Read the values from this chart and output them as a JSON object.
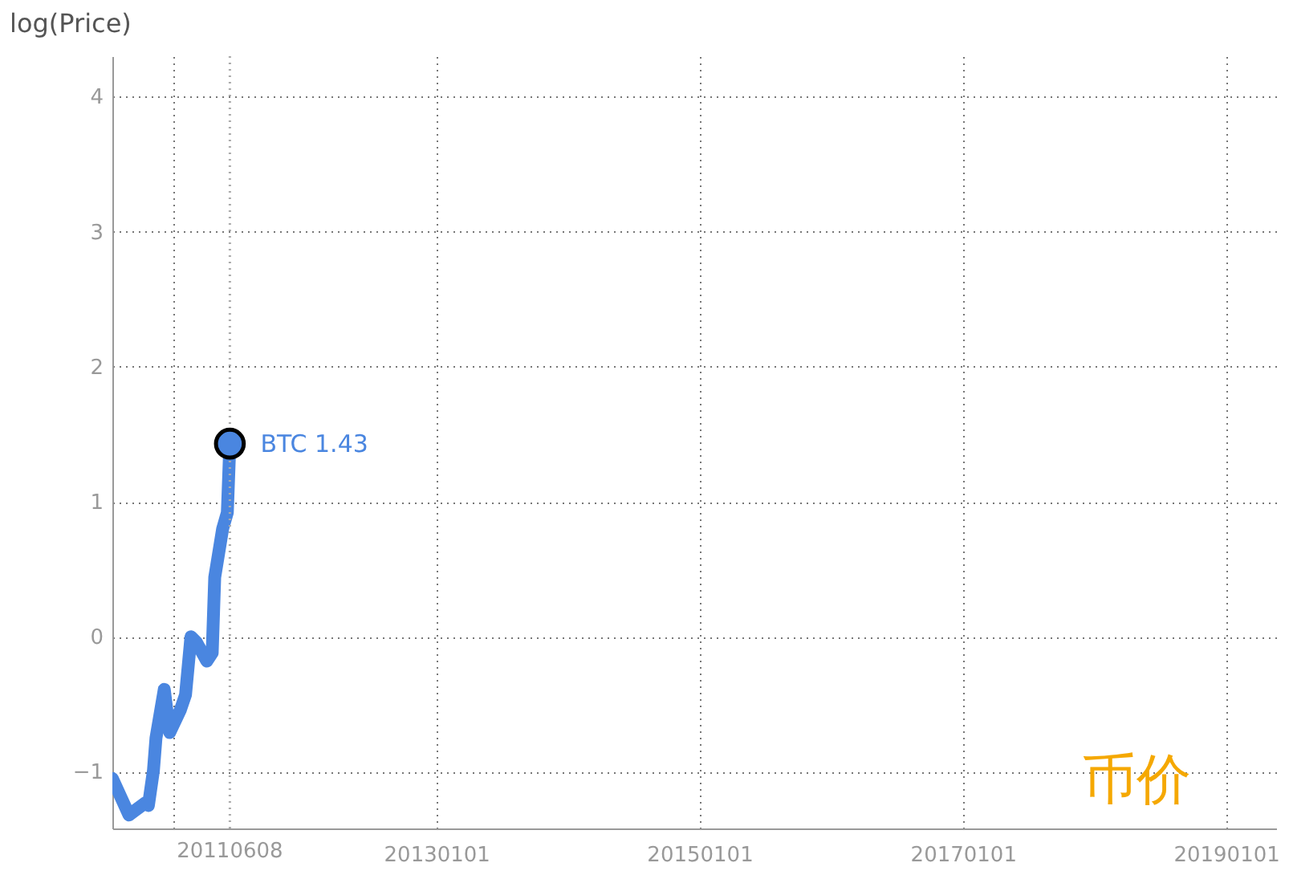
{
  "chart_data": {
    "type": "line",
    "title": "币价",
    "ylabel": "log(Price)",
    "x": [
      "2010-07-17",
      "2010-09-01",
      "2010-10-17",
      "2010-10-25",
      "2010-11-08",
      "2010-11-15",
      "2010-12-08",
      "2010-12-23",
      "2011-01-22",
      "2011-02-05",
      "2011-02-20",
      "2011-03-07",
      "2011-04-05",
      "2011-04-20",
      "2011-04-27",
      "2011-05-19",
      "2011-06-01",
      "2011-06-08"
    ],
    "series": [
      {
        "color": "#4a86e0",
        "values": [
          -1.05,
          -1.32,
          -1.23,
          -1.25,
          -0.99,
          -0.75,
          -0.39,
          -0.71,
          -0.54,
          -0.43,
          0.0,
          -0.04,
          -0.18,
          -0.12,
          0.44,
          0.8,
          0.92,
          1.43
        ]
      }
    ],
    "xlim": [
      "2010-07-17",
      "2019-05-20"
    ],
    "xticks": [
      {
        "value": "2011-01-01",
        "label": null
      },
      {
        "value": "2013-01-01",
        "label": "20130101"
      },
      {
        "value": "2015-01-01",
        "label": "20150101"
      },
      {
        "value": "2017-01-01",
        "label": "20170101"
      },
      {
        "value": "2019-01-01",
        "label": "20190101"
      }
    ],
    "ylim": [
      -1.42,
      4.3
    ],
    "yticks": [
      -1,
      0,
      1,
      2,
      3,
      4
    ],
    "ref_lines": [
      {
        "axis": "x",
        "value": "2011-06-08",
        "label": "20110608",
        "line_style": "dotted"
      }
    ],
    "annotations": [
      {
        "text": "BTC 1.43",
        "x": "2011-06-08",
        "y": 1.43
      }
    ],
    "grid": true,
    "line_style": "solid",
    "marker": "none"
  }
}
